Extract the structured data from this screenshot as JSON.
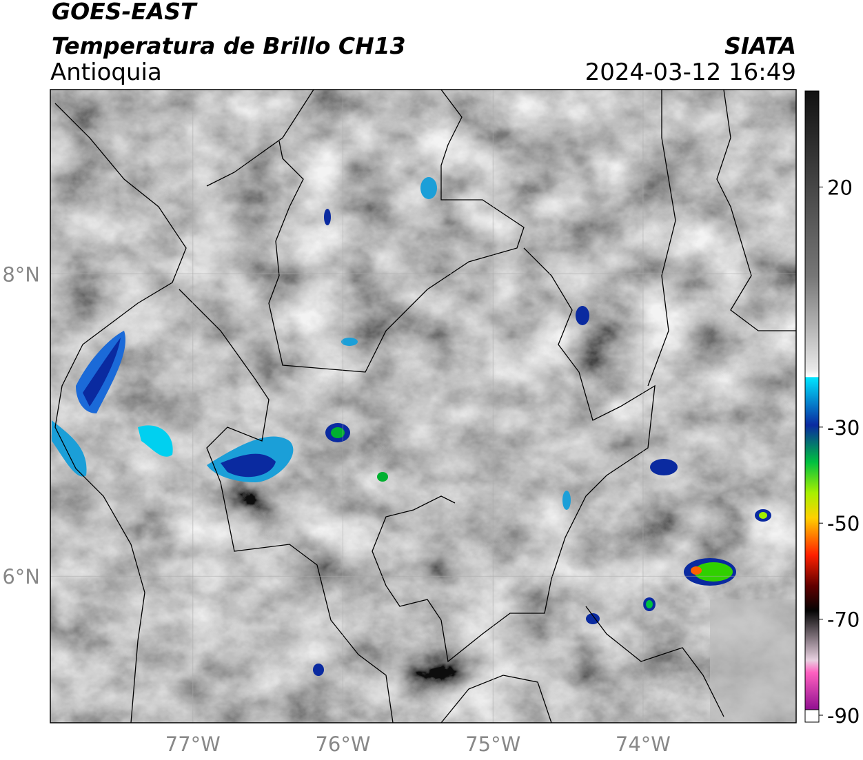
{
  "header": {
    "satellite": "GOES-EAST",
    "product": "Temperatura de Brillo CH13",
    "region": "Antioquia",
    "agency": "SIATA",
    "timestamp": "2024-03-12 16:49"
  },
  "map": {
    "xlim": [
      -77.95,
      -72.98
    ],
    "ylim": [
      5.03,
      9.22
    ],
    "xticks": [
      {
        "value": -77,
        "label": "77°W"
      },
      {
        "value": -76,
        "label": "76°W"
      },
      {
        "value": -75,
        "label": "75°W"
      },
      {
        "value": -74,
        "label": "74°W"
      }
    ],
    "yticks": [
      {
        "value": 8,
        "label": "8°N"
      },
      {
        "value": 6,
        "label": "6°N"
      }
    ],
    "grid": true
  },
  "colorbar": {
    "lim": [
      -90,
      40
    ],
    "ticks": [
      20,
      -30,
      -50,
      -70,
      -90
    ]
  }
}
